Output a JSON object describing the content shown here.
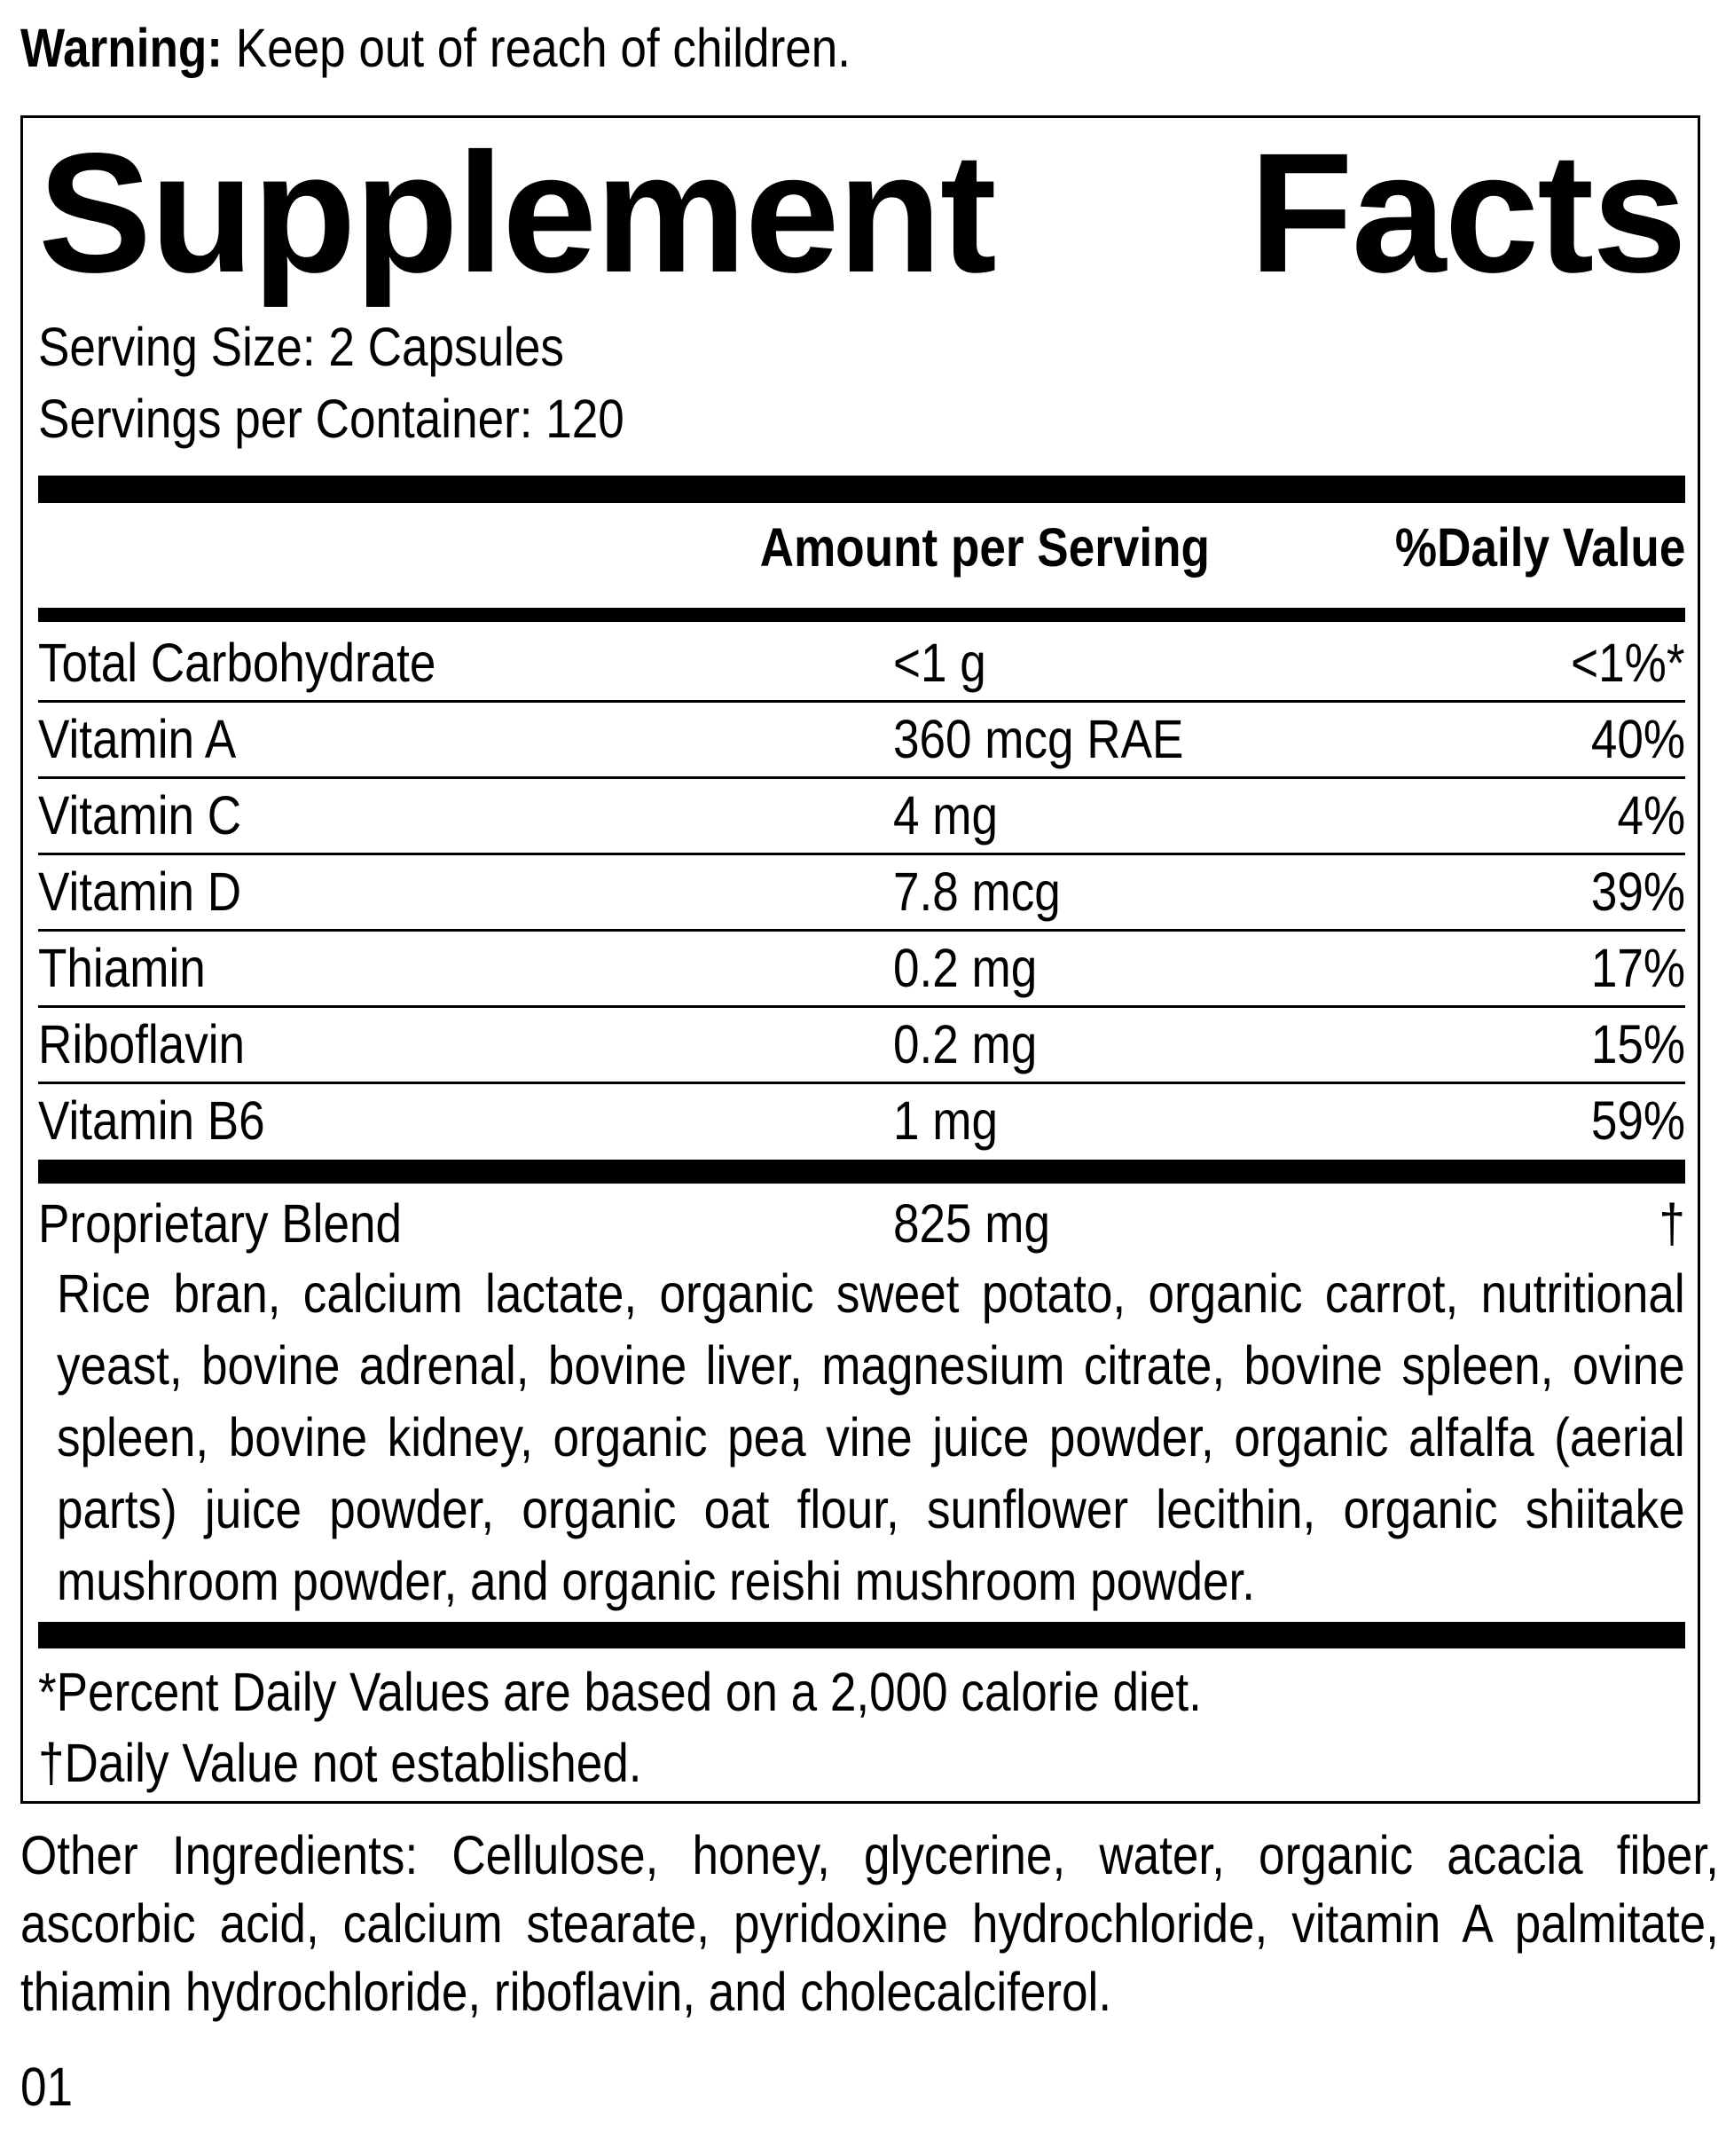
{
  "warning": {
    "label": "Warning:",
    "text": " Keep out of reach of children."
  },
  "title": {
    "word1": "Supplement",
    "word2": "Facts"
  },
  "serving_size": "Serving Size: 2 Capsules",
  "servings_per_container": "Servings per Container: 120",
  "header": {
    "amount": "Amount per Serving",
    "daily_value": "%Daily Value"
  },
  "nutrients": [
    {
      "name": "Total Carbohydrate",
      "amount": "<1 g",
      "dv": "<1%*"
    },
    {
      "name": "Vitamin A",
      "amount": "360 mcg RAE",
      "dv": "40%"
    },
    {
      "name": "Vitamin C",
      "amount": "4 mg",
      "dv": "4%"
    },
    {
      "name": "Vitamin D",
      "amount": "7.8 mcg",
      "dv": "39%"
    },
    {
      "name": "Thiamin",
      "amount": "0.2 mg",
      "dv": "17%"
    },
    {
      "name": "Riboflavin",
      "amount": "0.2 mg",
      "dv": "15%"
    },
    {
      "name": "Vitamin B6",
      "amount": "1 mg",
      "dv": "59%"
    }
  ],
  "blend": {
    "name": "Proprietary Blend",
    "amount": "825 mg",
    "dv": "†",
    "ingredients": "Rice bran, calcium lactate, organic sweet potato, organic carrot, nutritional yeast, bovine adrenal, bovine liver, magnesium citrate, bovine spleen, ovine spleen, bovine kidney, organic pea vine juice powder, organic alfalfa (aerial parts) juice powder, organic oat flour, sunflower lecithin, organic shiitake mushroom powder, and organic reishi mushroom powder."
  },
  "footnotes": [
    "*Percent Daily Values are based on a 2,000 calorie diet.",
    "†Daily Value not established."
  ],
  "other_ingredients": "Other Ingredients: Cellulose, honey, glycerine, water, organic acacia fiber, ascorbic acid, calcium stearate, pyridoxine hydrochloride, vitamin A palmitate, thiamin hydrochloride, riboflavin, and cholecalciferol.",
  "code": "01"
}
